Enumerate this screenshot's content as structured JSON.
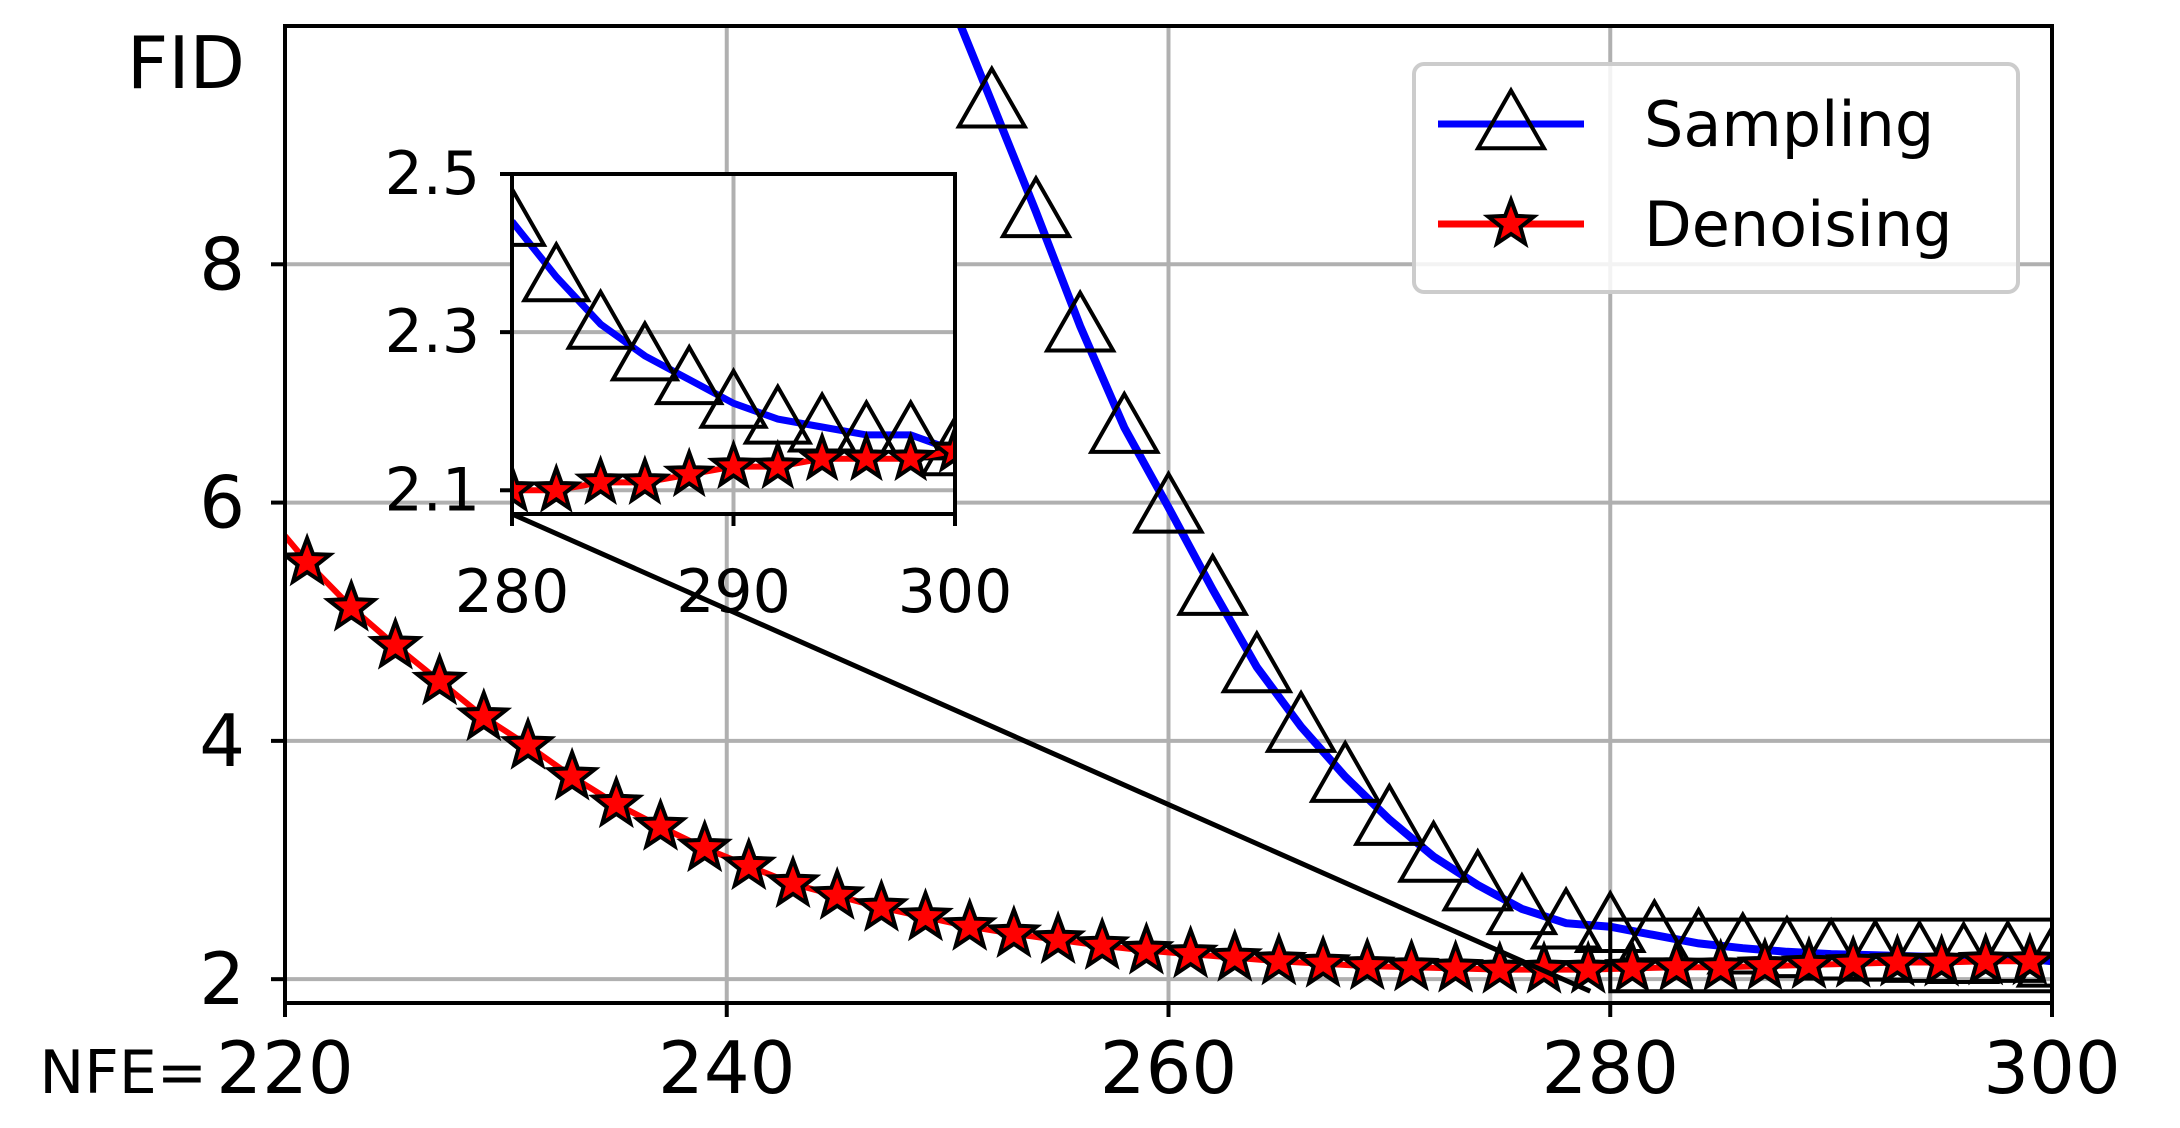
{
  "chart_data": {
    "type": "line",
    "title": "",
    "ylabel": "FID",
    "xlabel_prefix": "NFE=",
    "x_ticks": [
      220,
      240,
      260,
      280,
      300
    ],
    "y_ticks": [
      2,
      4,
      6,
      8
    ],
    "xlim": [
      220,
      300
    ],
    "ylim": [
      1.8,
      10.0
    ],
    "grid": true,
    "legend_position": "top-right",
    "series": [
      {
        "name": "Sampling",
        "color": "#0000ff",
        "marker": "triangle",
        "x": [
          252,
          254,
          256,
          258,
          260,
          262,
          264,
          266,
          268,
          270,
          272,
          274,
          276,
          278,
          280,
          282,
          284,
          286,
          288,
          290,
          292,
          294,
          296,
          298,
          300
        ],
        "y": [
          9.36,
          8.44,
          7.48,
          6.63,
          5.96,
          5.27,
          4.62,
          4.12,
          3.7,
          3.34,
          3.03,
          2.79,
          2.59,
          2.47,
          2.44,
          2.37,
          2.3,
          2.26,
          2.23,
          2.21,
          2.2,
          2.19,
          2.18,
          2.19,
          2.15
        ]
      },
      {
        "name": "Denoising",
        "color": "#ff0000",
        "marker": "star",
        "x": [
          221,
          223,
          225,
          227,
          229,
          231,
          233,
          235,
          237,
          239,
          241,
          243,
          245,
          247,
          249,
          251,
          253,
          255,
          257,
          259,
          261,
          263,
          265,
          267,
          269,
          271,
          273,
          275,
          277,
          279,
          281,
          283,
          285,
          287,
          289,
          291,
          293,
          295,
          297,
          299
        ],
        "y": [
          5.5,
          5.12,
          4.8,
          4.5,
          4.2,
          3.96,
          3.7,
          3.47,
          3.28,
          3.1,
          2.95,
          2.8,
          2.7,
          2.6,
          2.52,
          2.44,
          2.38,
          2.33,
          2.28,
          2.24,
          2.21,
          2.18,
          2.15,
          2.13,
          2.11,
          2.1,
          2.09,
          2.08,
          2.08,
          2.08,
          2.09,
          2.1,
          2.1,
          2.11,
          2.12,
          2.13,
          2.14,
          2.14,
          2.15,
          2.15
        ]
      }
    ],
    "inset": {
      "xlim": [
        280,
        300
      ],
      "ylim": [
        2.1,
        2.5
      ],
      "x_ticks": [
        280,
        290,
        300
      ],
      "y_ticks": [
        "2.1",
        "2.3",
        "2.5"
      ],
      "series": [
        {
          "name": "Sampling",
          "x": [
            280,
            282,
            284,
            286,
            288,
            290,
            292,
            294,
            296,
            298,
            300
          ],
          "y": [
            2.44,
            2.37,
            2.31,
            2.27,
            2.24,
            2.21,
            2.19,
            2.18,
            2.17,
            2.17,
            2.15
          ]
        },
        {
          "name": "Denoising",
          "x": [
            280,
            282,
            284,
            286,
            288,
            290,
            292,
            294,
            296,
            298,
            300
          ],
          "y": [
            2.1,
            2.1,
            2.11,
            2.11,
            2.12,
            2.13,
            2.13,
            2.14,
            2.14,
            2.14,
            2.15
          ]
        }
      ]
    }
  }
}
